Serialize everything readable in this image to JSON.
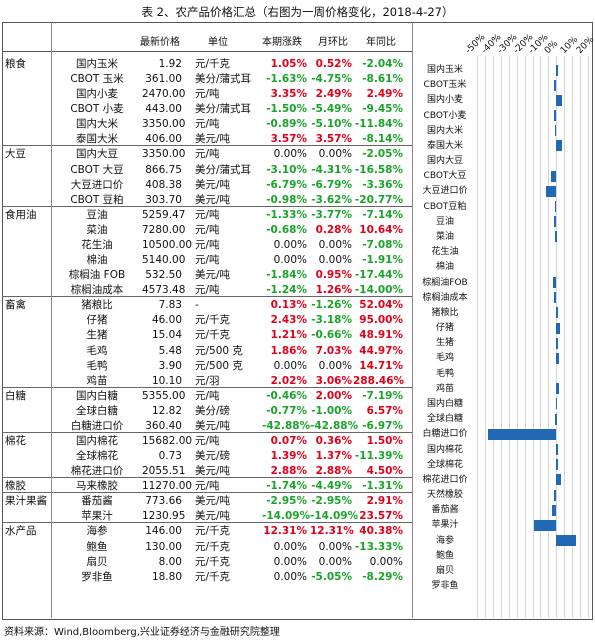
{
  "title": "表 2、农产品价格汇总（右图为一周价格变化，2018-4-27）",
  "headers": {
    "price": "最新价格",
    "unit": "单位",
    "wk": "本期涨跌",
    "mo": "月环比",
    "yr": "年同比"
  },
  "footer": "资料来源：Wind,Bloomberg,兴业证券经济与金融研究院整理",
  "colors": {
    "positive": "#e2001a",
    "negative": "#1aa32a",
    "bar": "#2269b5"
  },
  "rows": [
    {
      "cat": "粮食",
      "name": "国内玉米",
      "price": "1.92",
      "unit": "元/千克",
      "wk": "1.05%",
      "mo": "0.52%",
      "yr": "-2.04%"
    },
    {
      "cat": "",
      "name": "CBOT 玉米",
      "price": "361.00",
      "unit": "美分/蒲式耳",
      "wk": "-1.63%",
      "mo": "-4.75%",
      "yr": "-8.61%"
    },
    {
      "cat": "",
      "name": "国内小麦",
      "price": "2470.00",
      "unit": "元/吨",
      "wk": "3.35%",
      "mo": "2.49%",
      "yr": "2.49%"
    },
    {
      "cat": "",
      "name": "CBOT 小麦",
      "price": "443.00",
      "unit": "美分/蒲式耳",
      "wk": "-1.50%",
      "mo": "-5.49%",
      "yr": "-9.45%"
    },
    {
      "cat": "",
      "name": "国内大米",
      "price": "3350.00",
      "unit": "元/吨",
      "wk": "-0.89%",
      "mo": "-5.10%",
      "yr": "-11.84%"
    },
    {
      "cat": "",
      "name": "泰国大米",
      "price": "406.00",
      "unit": "美元/吨",
      "wk": "3.57%",
      "mo": "3.57%",
      "yr": "-8.14%"
    },
    {
      "cat": "大豆",
      "name": "国内大豆",
      "price": "3350.00",
      "unit": "元/吨",
      "wk": "0.00%",
      "mo": "0.00%",
      "yr": "-2.05%"
    },
    {
      "cat": "",
      "name": "CBOT 大豆",
      "price": "866.75",
      "unit": "美分/蒲式耳",
      "wk": "-3.10%",
      "mo": "-4.31%",
      "yr": "-16.58%"
    },
    {
      "cat": "",
      "name": "大豆进口价",
      "price": "408.38",
      "unit": "美元/吨",
      "wk": "-6.79%",
      "mo": "-6.79%",
      "yr": "-3.36%"
    },
    {
      "cat": "",
      "name": "CBOT 豆粕",
      "price": "303.70",
      "unit": "美元/吨",
      "wk": "-0.98%",
      "mo": "-3.62%",
      "yr": "-20.77%"
    },
    {
      "cat": "食用油",
      "name": "豆油",
      "price": "5259.47",
      "unit": "元/吨",
      "wk": "-1.33%",
      "mo": "-3.77%",
      "yr": "-7.14%"
    },
    {
      "cat": "",
      "name": "菜油",
      "price": "7280.00",
      "unit": "元/吨",
      "wk": "-0.68%",
      "mo": "0.28%",
      "yr": "10.64%"
    },
    {
      "cat": "",
      "name": "花生油",
      "price": "10500.00",
      "unit": "元/吨",
      "wk": "0.00%",
      "mo": "0.00%",
      "yr": "-7.08%"
    },
    {
      "cat": "",
      "name": "棉油",
      "price": "5140.00",
      "unit": "元/吨",
      "wk": "0.00%",
      "mo": "0.00%",
      "yr": "-1.91%"
    },
    {
      "cat": "",
      "name": "棕榈油 FOB",
      "price": "532.50",
      "unit": "美元/吨",
      "wk": "-1.84%",
      "mo": "0.95%",
      "yr": "-17.44%"
    },
    {
      "cat": "",
      "name": "棕榈油成本",
      "price": "4573.48",
      "unit": "元/吨",
      "wk": "-1.24%",
      "mo": "1.26%",
      "yr": "-14.00%"
    },
    {
      "cat": "畜禽",
      "name": "猪粮比",
      "price": "7.83",
      "unit": "-",
      "wk": "0.13%",
      "mo": "-1.26%",
      "yr": "52.04%"
    },
    {
      "cat": "",
      "name": "仔猪",
      "price": "46.00",
      "unit": "元/千克",
      "wk": "2.43%",
      "mo": "-3.18%",
      "yr": "95.00%"
    },
    {
      "cat": "",
      "name": "生猪",
      "price": "15.04",
      "unit": "元/千克",
      "wk": "1.21%",
      "mo": "-0.66%",
      "yr": "48.91%"
    },
    {
      "cat": "",
      "name": "毛鸡",
      "price": "5.48",
      "unit": "元/500 克",
      "wk": "1.86%",
      "mo": "7.03%",
      "yr": "44.97%"
    },
    {
      "cat": "",
      "name": "毛鸭",
      "price": "3.90",
      "unit": "元/500 克",
      "wk": "0.00%",
      "mo": "0.00%",
      "yr": "14.71%"
    },
    {
      "cat": "",
      "name": "鸡苗",
      "price": "10.10",
      "unit": "元/羽",
      "wk": "2.02%",
      "mo": "3.06%",
      "yr": "288.46%"
    },
    {
      "cat": "白糖",
      "name": "国内白糖",
      "price": "5355.00",
      "unit": "元/吨",
      "wk": "-0.46%",
      "mo": "2.00%",
      "yr": "-7.19%"
    },
    {
      "cat": "",
      "name": "全球白糖",
      "price": "12.82",
      "unit": "美分/磅",
      "wk": "-0.77%",
      "mo": "-1.00%",
      "yr": "6.57%"
    },
    {
      "cat": "",
      "name": "白糖进口价",
      "price": "360.40",
      "unit": "美元/吨",
      "wk": "-42.88%",
      "mo": "-42.88%",
      "yr": "-6.97%"
    },
    {
      "cat": "棉花",
      "name": "国内棉花",
      "price": "15682.00",
      "unit": "元/吨",
      "wk": "0.07%",
      "mo": "0.36%",
      "yr": "1.50%"
    },
    {
      "cat": "",
      "name": "全球棉花",
      "price": "0.73",
      "unit": "美元/磅",
      "wk": "1.39%",
      "mo": "1.37%",
      "yr": "-11.39%"
    },
    {
      "cat": "",
      "name": "棉花进口价",
      "price": "2055.51",
      "unit": "美元/吨",
      "wk": "2.88%",
      "mo": "2.88%",
      "yr": "4.50%"
    },
    {
      "cat": "橡胶",
      "name": "马来橡胶",
      "price": "11270.00",
      "unit": "元/吨",
      "wk": "-1.74%",
      "mo": "-4.49%",
      "yr": "-1.31%"
    },
    {
      "cat": "果汁果酱",
      "name": "番茄酱",
      "price": "773.66",
      "unit": "美元/吨",
      "wk": "-2.95%",
      "mo": "-2.95%",
      "yr": "2.91%"
    },
    {
      "cat": "",
      "name": "苹果汁",
      "price": "1230.95",
      "unit": "美元/吨",
      "wk": "-14.09%",
      "mo": "-14.09%",
      "yr": "23.57%"
    },
    {
      "cat": "水产品",
      "name": "海参",
      "price": "146.00",
      "unit": "元/千克",
      "wk": "12.31%",
      "mo": "12.31%",
      "yr": "40.38%"
    },
    {
      "cat": "",
      "name": "鲍鱼",
      "price": "130.00",
      "unit": "元/千克",
      "wk": "0.00%",
      "mo": "0.00%",
      "yr": "-13.33%"
    },
    {
      "cat": "",
      "name": "扇贝",
      "price": "8.00",
      "unit": "元/千克",
      "wk": "0.00%",
      "mo": "0.00%",
      "yr": "0.00%"
    },
    {
      "cat": "",
      "name": "罗非鱼",
      "price": "18.80",
      "unit": "元/千克",
      "wk": "0.00%",
      "mo": "-5.05%",
      "yr": "-8.29%"
    }
  ],
  "chart_data": {
    "type": "bar",
    "orientation": "horizontal",
    "categories": [
      "国内玉米",
      "CBOT玉米",
      "国内小麦",
      "CBOT小麦",
      "国内大米",
      "泰国大米",
      "国内大豆",
      "CBOT大豆",
      "大豆进口价",
      "CBOT豆粕",
      "豆油",
      "菜油",
      "花生油",
      "棉油",
      "棕榈油FOB",
      "棕榈油成本",
      "猪粮比",
      "仔猪",
      "生猪",
      "毛鸡",
      "毛鸭",
      "鸡苗",
      "国内白糖",
      "全球白糖",
      "白糖进口价",
      "国内棉花",
      "全球棉花",
      "棉花进口价",
      "天然橡胶",
      "番茄酱",
      "苹果汁",
      "海参",
      "鲍鱼",
      "扇贝",
      "罗非鱼"
    ],
    "values": [
      1.05,
      -1.63,
      3.35,
      -1.5,
      -0.89,
      3.57,
      0.0,
      -3.1,
      -6.79,
      -0.98,
      -1.33,
      -0.68,
      0.0,
      0.0,
      -1.84,
      -1.24,
      0.13,
      2.43,
      1.21,
      1.86,
      0.0,
      2.02,
      -0.46,
      -0.77,
      -42.88,
      0.07,
      1.39,
      2.88,
      -1.74,
      -2.95,
      -14.09,
      12.31,
      0.0,
      0.0,
      0.0
    ],
    "xticks": [
      "-50%",
      "-40%",
      "-30%",
      "-20%",
      "-10%",
      "0%",
      "10%",
      "20%"
    ],
    "xlim": [
      -50,
      20
    ]
  }
}
